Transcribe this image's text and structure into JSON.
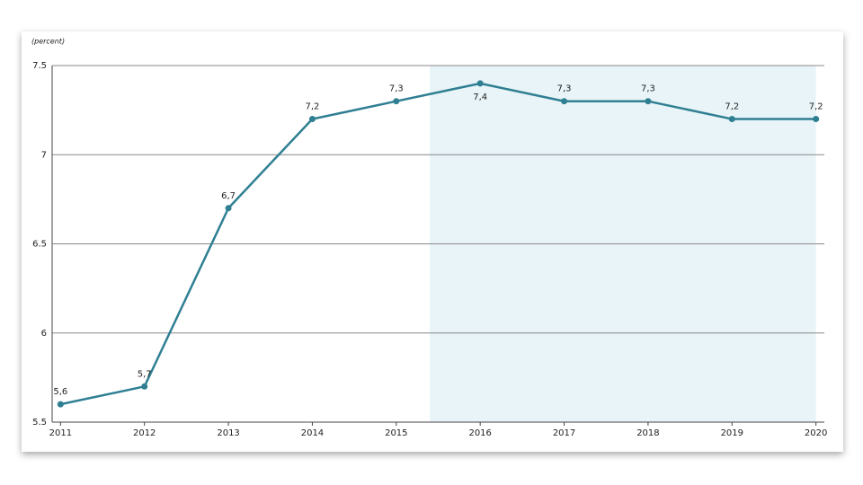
{
  "chart_data": {
    "type": "line",
    "y_label": "(percent)",
    "x": [
      2011,
      2012,
      2013,
      2014,
      2015,
      2016,
      2017,
      2018,
      2019,
      2020
    ],
    "series": [
      {
        "color": "#2f7f93",
        "values": [
          5.6,
          5.7,
          6.7,
          7.2,
          7.3,
          7.4,
          7.3,
          7.3,
          7.2,
          7.2
        ],
        "value_labels": [
          "5,6",
          "5,7",
          "6,7",
          "7,2",
          "7,3",
          "7,4",
          "7,3",
          "7,3",
          "7,2",
          "7,2"
        ]
      }
    ],
    "xlim": [
      2010.9,
      2020.1
    ],
    "xticks": [
      2011,
      2012,
      2013,
      2014,
      2015,
      2016,
      2017,
      2018,
      2019,
      2020
    ],
    "ylim": [
      5.5,
      7.5
    ],
    "yticks": [
      5.5,
      6,
      6.5,
      7,
      7.5
    ],
    "grid": true,
    "highlight_xlim": [
      2015.4,
      2020
    ],
    "highlight_color": "#e8f4f7"
  }
}
